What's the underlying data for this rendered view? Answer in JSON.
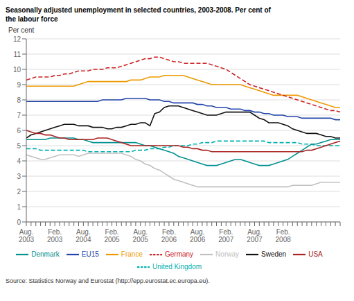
{
  "chart_data": {
    "type": "line",
    "title": "Seasonally adjusted unemployment in selected countries, 2003-2008. Per cent of\nthe labour force",
    "y_label": "Per cent",
    "annotations": [
      "Source: Statistics Norway and Eurostat (http://epp.eurostat.ec.europa.eu)."
    ],
    "categories": [
      "Aug.\n2003",
      null,
      null,
      null,
      null,
      null,
      "Feb.\n2003",
      null,
      null,
      null,
      null,
      null,
      "Aug.\n2004",
      null,
      null,
      null,
      null,
      null,
      "Feb.\n2005",
      null,
      null,
      null,
      null,
      null,
      "Aug.\n2005",
      null,
      null,
      null,
      null,
      null,
      "Feb.\n2006",
      null,
      null,
      null,
      null,
      null,
      "Aug.\n2006",
      null,
      null,
      null,
      null,
      null,
      "Feb.\n2007",
      null,
      null,
      null,
      null,
      null,
      "Aug.\n2007",
      null,
      null,
      null,
      null,
      null,
      "Feb.\n2008",
      null,
      null,
      null,
      null,
      null,
      null,
      null,
      null,
      null,
      null,
      null,
      null
    ],
    "ylim": [
      0,
      12
    ],
    "yticks": [
      0,
      1,
      2,
      3,
      4,
      5,
      6,
      7,
      8,
      9,
      10,
      11,
      12
    ],
    "grid": true,
    "legend": "bottom",
    "series": [
      {
        "name": "Norway",
        "color": "#c0c0c0",
        "line_style": "solid",
        "values": [
          4.4,
          4.3,
          4.2,
          4.1,
          4.1,
          4.2,
          4.3,
          4.4,
          4.4,
          4.4,
          4.4,
          4.3,
          4.4,
          4.5,
          4.5,
          4.5,
          4.5,
          4.5,
          4.5,
          4.5,
          4.5,
          4.4,
          4.3,
          4.1,
          4.0,
          3.8,
          3.7,
          3.5,
          3.4,
          3.2,
          3.0,
          2.8,
          2.7,
          2.6,
          2.5,
          2.4,
          2.3,
          2.3,
          2.3,
          2.3,
          2.3,
          2.3,
          2.3,
          2.3,
          2.3,
          2.3,
          2.3,
          2.3,
          2.3,
          2.3,
          2.3,
          2.3,
          2.3,
          2.3,
          2.3,
          2.3,
          2.4,
          2.4,
          2.4,
          2.4,
          2.4,
          2.5,
          2.6,
          2.6,
          2.6,
          2.6,
          2.6
        ]
      },
      {
        "name": "United Kingdom",
        "color": "#00b0b0",
        "line_style": "dashed",
        "values": [
          4.8,
          4.8,
          4.8,
          4.7,
          4.7,
          4.7,
          4.7,
          4.7,
          4.7,
          4.7,
          4.7,
          4.7,
          4.7,
          4.6,
          4.6,
          4.6,
          4.6,
          4.6,
          4.6,
          4.6,
          4.6,
          4.6,
          4.6,
          4.7,
          4.7,
          4.7,
          4.8,
          4.8,
          4.8,
          4.9,
          4.9,
          5.0,
          5.0,
          5.0,
          5.0,
          5.1,
          5.1,
          5.2,
          5.2,
          5.2,
          5.3,
          5.3,
          5.3,
          5.3,
          5.3,
          5.3,
          5.3,
          5.3,
          5.3,
          5.3,
          5.3,
          5.2,
          5.2,
          5.2,
          5.2,
          5.2,
          5.2,
          5.2,
          5.1,
          5.1,
          5.1,
          5.0,
          5.0,
          5.0,
          5.0,
          5.0,
          5.0
        ]
      },
      {
        "name": "Denmark",
        "color": "#009090",
        "line_style": "solid",
        "values": [
          5.4,
          5.4,
          5.4,
          5.4,
          5.4,
          5.5,
          5.5,
          5.5,
          5.5,
          5.5,
          5.5,
          5.4,
          5.4,
          5.3,
          5.2,
          5.2,
          5.2,
          5.2,
          5.2,
          5.2,
          5.2,
          5.2,
          5.2,
          5.2,
          5.1,
          5.0,
          5.0,
          4.9,
          4.8,
          4.7,
          4.6,
          4.5,
          4.3,
          4.2,
          4.1,
          4.0,
          3.9,
          3.8,
          3.7,
          3.7,
          3.7,
          3.8,
          3.9,
          4.0,
          4.1,
          4.1,
          4.0,
          3.9,
          3.8,
          3.7,
          3.7,
          3.7,
          3.8,
          3.9,
          4.0,
          4.1,
          4.3,
          4.5,
          4.7,
          4.9,
          5.1,
          5.1,
          5.2,
          5.3,
          5.4,
          5.4,
          5.4
        ]
      },
      {
        "name": "Sweden",
        "color": "#111111",
        "line_style": "solid",
        "values": [
          5.5,
          5.7,
          5.8,
          5.9,
          6.0,
          6.1,
          6.2,
          6.3,
          6.4,
          6.4,
          6.4,
          6.3,
          6.3,
          6.3,
          6.2,
          6.2,
          6.2,
          6.1,
          6.1,
          6.2,
          6.2,
          6.3,
          6.4,
          6.4,
          6.5,
          6.5,
          6.3,
          7.1,
          7.2,
          7.5,
          7.6,
          7.6,
          7.6,
          7.5,
          7.4,
          7.3,
          7.2,
          7.1,
          7.0,
          7.0,
          7.0,
          7.1,
          7.2,
          7.2,
          7.2,
          7.2,
          7.2,
          7.2,
          7.0,
          6.8,
          6.7,
          6.5,
          6.5,
          6.5,
          6.4,
          6.3,
          6.1,
          6.0,
          5.9,
          5.8,
          5.8,
          5.8,
          5.7,
          5.6,
          5.6,
          5.5,
          5.5
        ]
      },
      {
        "name": "USA",
        "color": "#aa2222",
        "line_style": "solid",
        "values": [
          6.0,
          5.9,
          5.8,
          5.8,
          5.7,
          5.7,
          5.6,
          5.5,
          5.5,
          5.4,
          5.4,
          5.4,
          5.4,
          5.4,
          5.4,
          5.5,
          5.5,
          5.5,
          5.4,
          5.3,
          5.2,
          5.1,
          5.0,
          5.0,
          5.0,
          5.0,
          5.0,
          5.0,
          5.0,
          5.0,
          5.0,
          5.0,
          5.0,
          4.9,
          4.9,
          4.8,
          4.8,
          4.7,
          4.7,
          4.6,
          4.6,
          4.6,
          4.6,
          4.6,
          4.6,
          4.6,
          4.6,
          4.6,
          4.6,
          4.6,
          4.6,
          4.6,
          4.6,
          4.6,
          4.6,
          4.6,
          4.6,
          4.6,
          4.6,
          4.7,
          4.7,
          4.8,
          4.9,
          5.0,
          5.1,
          5.2,
          5.3
        ]
      },
      {
        "name": "EU15",
        "color": "#2244aa",
        "line_style": "solid",
        "values": [
          7.9,
          7.9,
          7.9,
          7.9,
          7.9,
          7.9,
          7.9,
          7.9,
          7.9,
          7.9,
          7.9,
          7.9,
          7.9,
          7.9,
          7.9,
          7.9,
          8.0,
          8.0,
          8.0,
          8.0,
          8.0,
          8.1,
          8.1,
          8.1,
          8.1,
          8.1,
          8.0,
          8.0,
          8.0,
          7.9,
          7.9,
          7.8,
          7.8,
          7.8,
          7.8,
          7.8,
          7.7,
          7.7,
          7.6,
          7.6,
          7.5,
          7.5,
          7.5,
          7.4,
          7.4,
          7.4,
          7.3,
          7.3,
          7.2,
          7.2,
          7.1,
          7.1,
          7.0,
          7.0,
          7.0,
          6.9,
          6.9,
          6.9,
          6.8,
          6.8,
          6.8,
          6.8,
          6.8,
          6.8,
          6.8,
          6.7,
          6.7
        ]
      },
      {
        "name": "France",
        "color": "#ee9900",
        "line_style": "solid",
        "values": [
          8.9,
          8.9,
          8.9,
          8.9,
          8.9,
          8.9,
          8.9,
          8.9,
          8.9,
          8.9,
          8.9,
          9.0,
          9.1,
          9.2,
          9.2,
          9.2,
          9.2,
          9.2,
          9.2,
          9.2,
          9.2,
          9.2,
          9.3,
          9.3,
          9.3,
          9.4,
          9.5,
          9.5,
          9.5,
          9.6,
          9.6,
          9.6,
          9.6,
          9.6,
          9.5,
          9.4,
          9.3,
          9.2,
          9.1,
          9.0,
          9.0,
          9.0,
          9.0,
          9.0,
          9.0,
          9.0,
          8.9,
          8.8,
          8.7,
          8.6,
          8.5,
          8.4,
          8.3,
          8.3,
          8.3,
          8.3,
          8.3,
          8.3,
          8.2,
          8.1,
          8.0,
          7.9,
          7.8,
          7.7,
          7.6,
          7.5,
          7.5
        ]
      },
      {
        "name": "Germany",
        "color": "#cc2222",
        "line_style": "dashed",
        "values": [
          9.3,
          9.4,
          9.5,
          9.5,
          9.5,
          9.5,
          9.6,
          9.6,
          9.7,
          9.7,
          9.8,
          9.9,
          9.9,
          9.9,
          10.0,
          10.0,
          10.0,
          10.1,
          10.1,
          10.1,
          10.2,
          10.3,
          10.4,
          10.5,
          10.6,
          10.7,
          10.7,
          10.8,
          10.8,
          10.7,
          10.6,
          10.5,
          10.5,
          10.4,
          10.4,
          10.4,
          10.4,
          10.4,
          10.4,
          10.3,
          10.2,
          10.1,
          10.0,
          9.8,
          9.6,
          9.4,
          9.2,
          9.0,
          8.9,
          8.8,
          8.7,
          8.6,
          8.5,
          8.4,
          8.3,
          8.2,
          8.1,
          8.0,
          7.9,
          7.8,
          7.7,
          7.6,
          7.5,
          7.4,
          7.3,
          7.3,
          7.2
        ]
      }
    ]
  }
}
